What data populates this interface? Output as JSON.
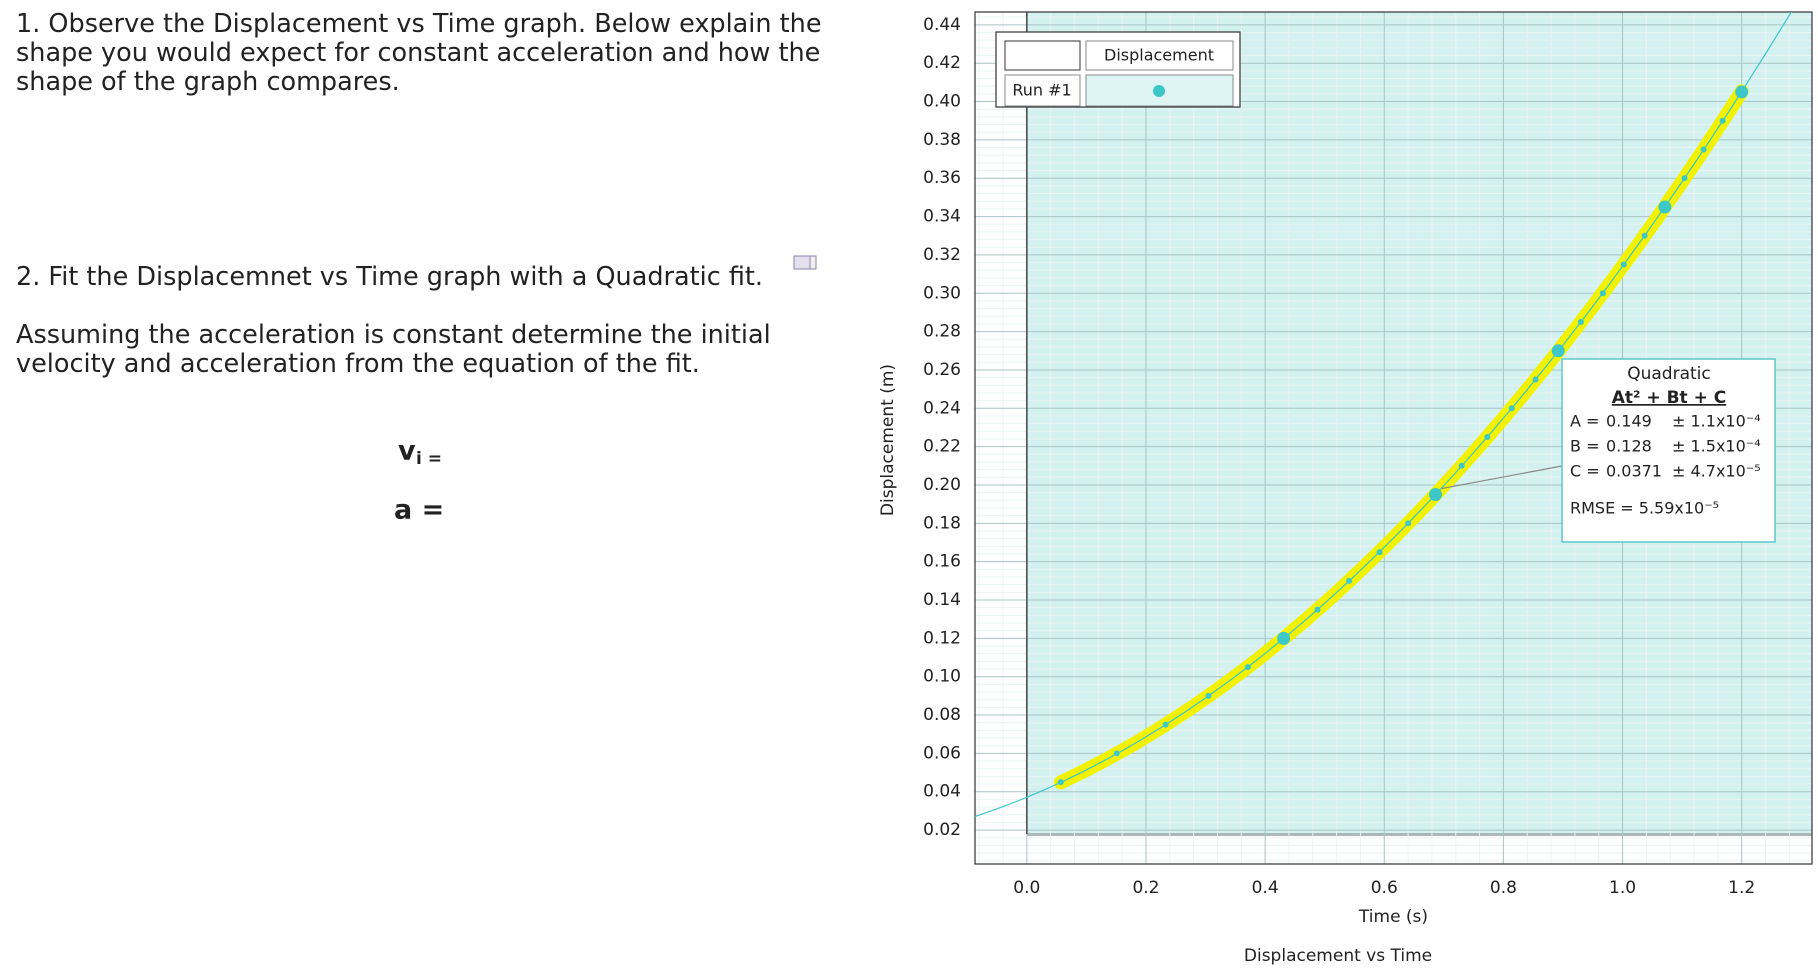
{
  "worksheet": {
    "q1": [
      "1. Observe the Displacement vs Time graph.  Below explain the",
      "shape you would expect for constant acceleration and how the",
      "shape of the graph compares."
    ],
    "q2": "2. Fit the Displacemnet vs Time graph with a Quadratic fit.",
    "q2b": [
      "Assuming the acceleration is constant determine the initial",
      "velocity and acceleration from the equation of the fit."
    ],
    "vi_main": "v",
    "vi_sub": "i =",
    "a": "a ="
  },
  "chart_data": {
    "type": "scatter",
    "title": "Displacement vs Time",
    "x_label": "Time (s)",
    "y_label": "Displacement (m)",
    "legend": {
      "header": "Displacement",
      "run": "Run #1"
    },
    "series": [
      {
        "name": "Displacement",
        "color": "#3cc8c8",
        "x": [
          0.057,
          0.151,
          0.233,
          0.305,
          0.371,
          0.431,
          0.488,
          0.541,
          0.592,
          0.64,
          0.686,
          0.73,
          0.773,
          0.814,
          0.854,
          0.892,
          0.93,
          0.967,
          1.002,
          1.037,
          1.071,
          1.104,
          1.136,
          1.168,
          1.2
        ],
        "values": [
          0.045,
          0.06,
          0.075,
          0.09,
          0.105,
          0.12,
          0.135,
          0.15,
          0.165,
          0.18,
          0.195,
          0.21,
          0.225,
          0.24,
          0.255,
          0.27,
          0.285,
          0.3,
          0.315,
          0.33,
          0.345,
          0.36,
          0.375,
          0.39,
          0.405
        ]
      }
    ],
    "fit": {
      "name": "Quadratic",
      "equation": "At² + Bt + C",
      "highlight": "#f2f200",
      "params": [
        {
          "label": "A =",
          "value": 0.149,
          "error": "± 1.1x10⁻⁴"
        },
        {
          "label": "B =",
          "value": 0.128,
          "error": "± 1.5x10⁻⁴"
        },
        {
          "label": "C =",
          "value": 0.0371,
          "error": "± 4.7x10⁻⁵"
        }
      ],
      "rmse": "RMSE = 5.59x10⁻⁵"
    },
    "xlim": [
      -0.087,
      1.318
    ],
    "ylim": [
      0.0023,
      0.4467
    ],
    "xticks": [
      {
        "value": 0,
        "label": "0.0"
      },
      0.2,
      0.4,
      0.6,
      0.8,
      {
        "value": 1,
        "label": "1.0"
      },
      1.2
    ],
    "yticks": [
      0.02,
      0.04,
      0.06,
      0.08,
      {
        "value": 0.1,
        "label": "0.10"
      },
      0.12,
      0.14,
      0.16,
      0.18,
      {
        "value": 0.2,
        "label": "0.20"
      },
      0.22,
      0.24,
      0.26,
      0.28,
      {
        "value": 0.3,
        "label": "0.30"
      },
      0.32,
      0.34,
      0.36,
      0.38,
      {
        "value": 0.4,
        "label": "0.40"
      },
      0.42,
      0.44
    ],
    "grid": true
  }
}
